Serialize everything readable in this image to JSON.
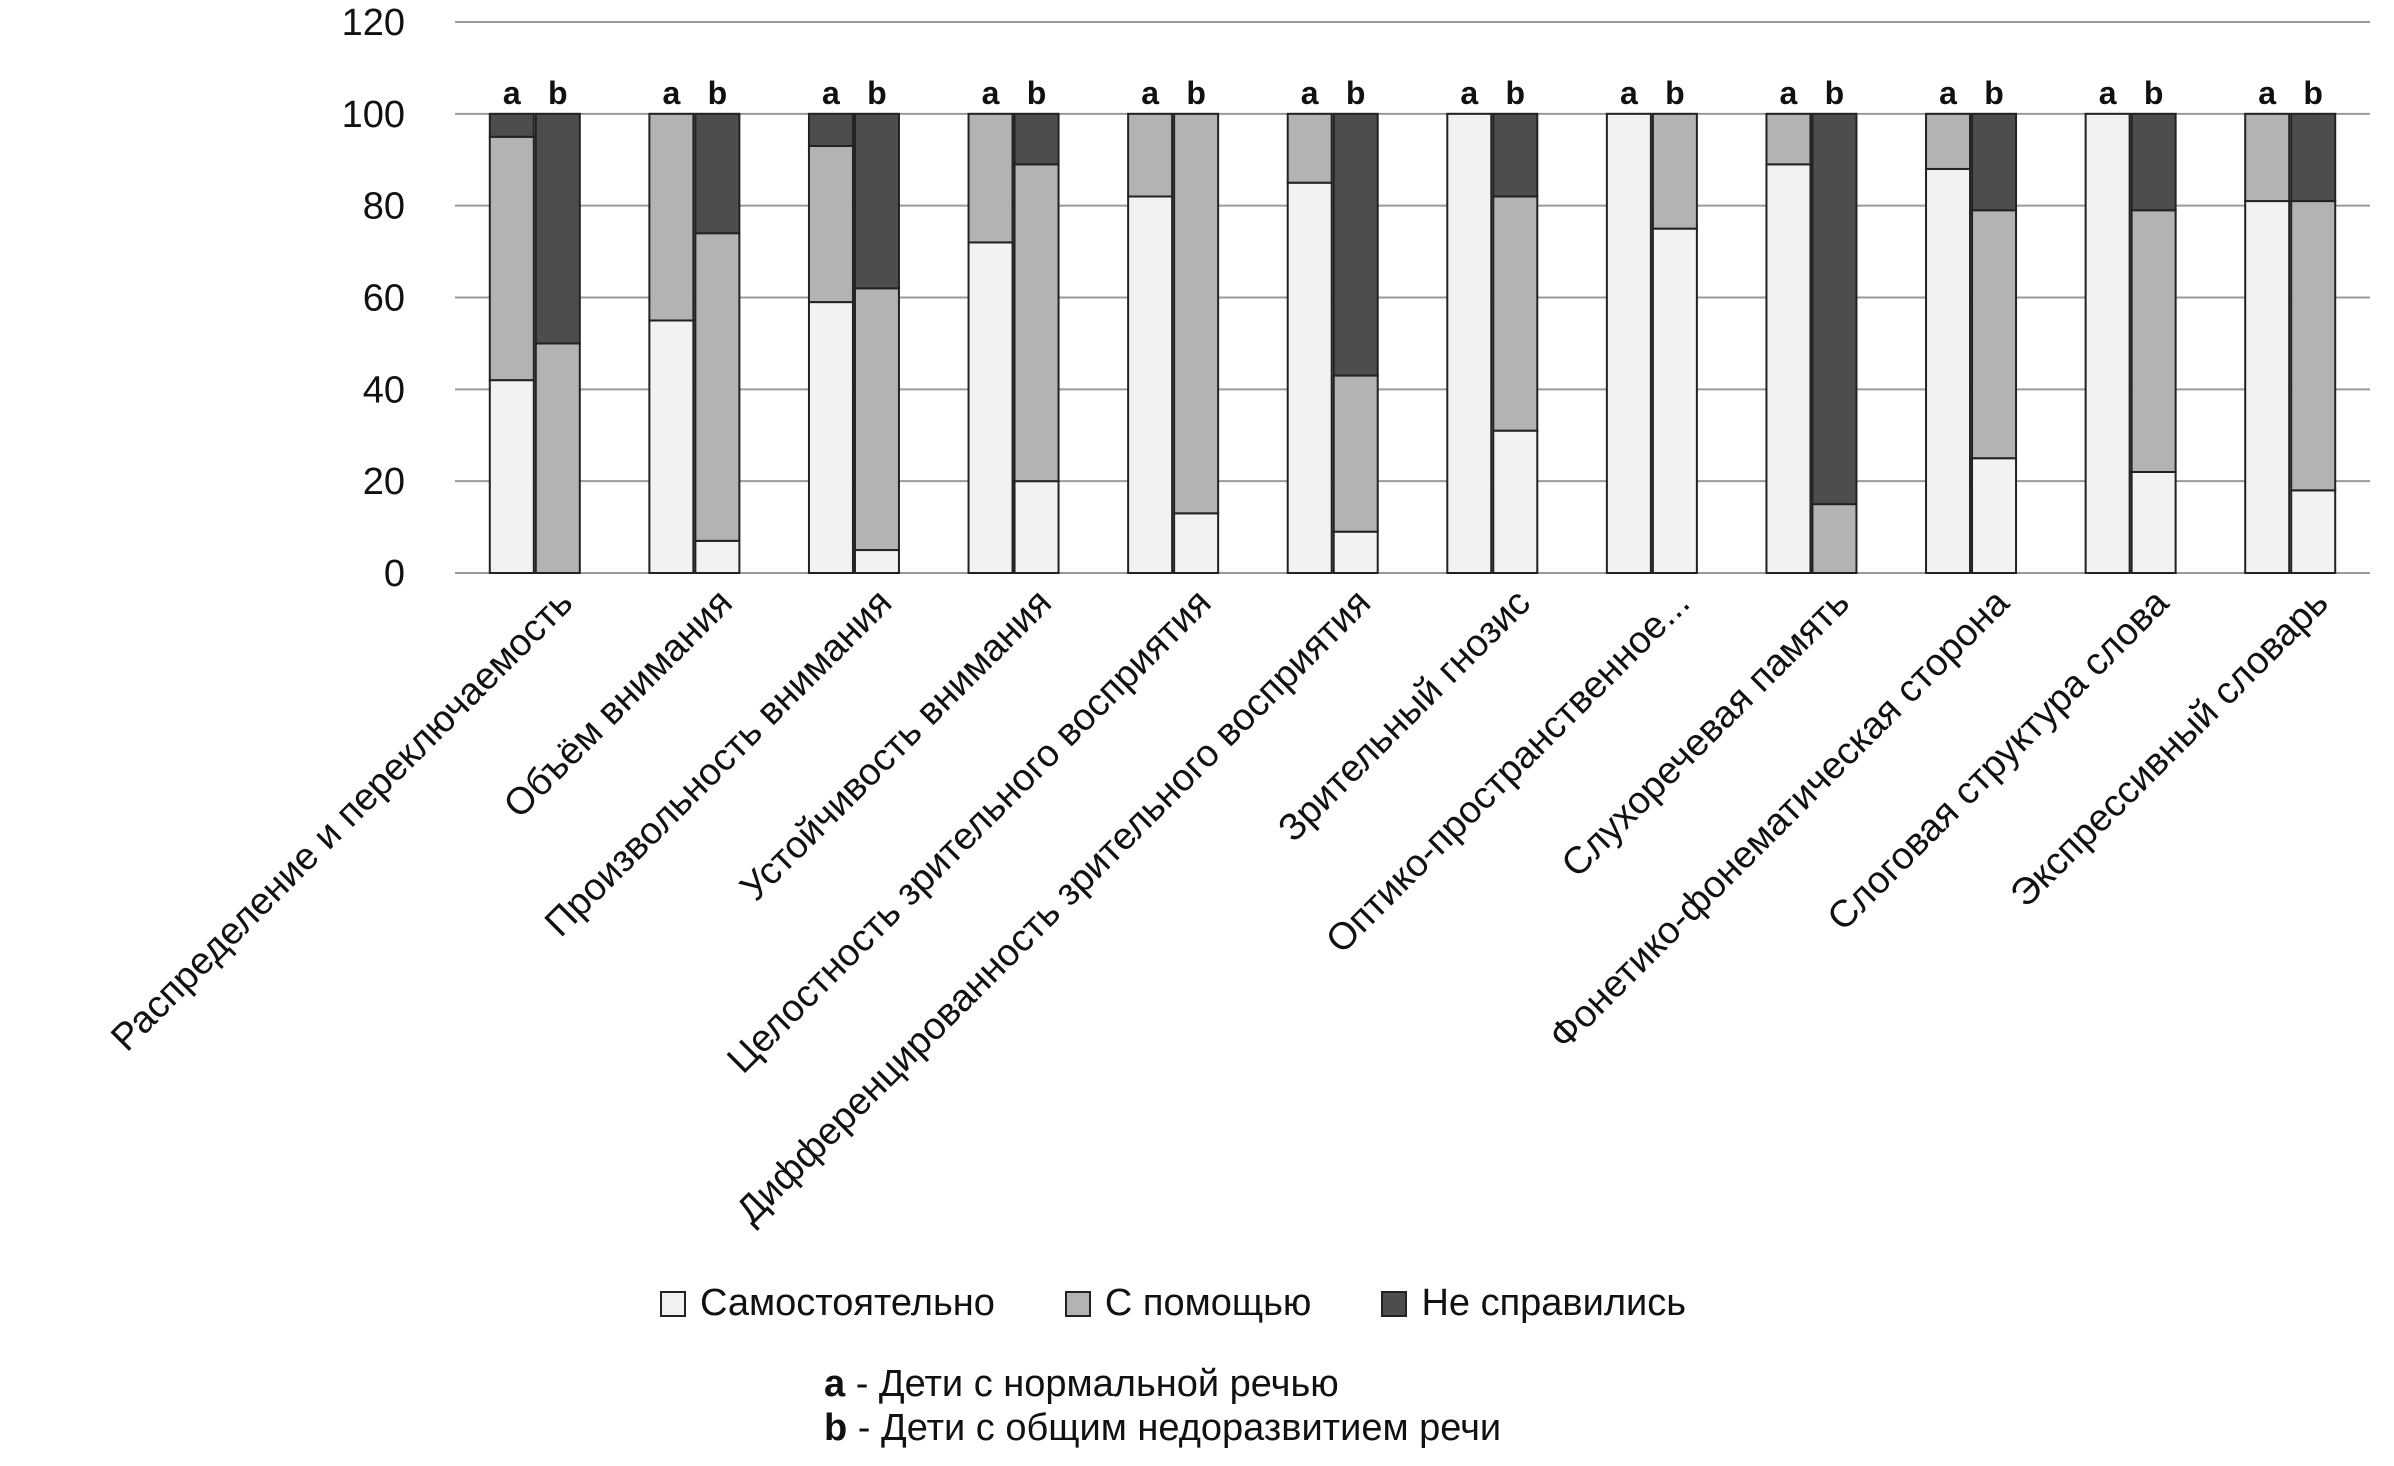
{
  "chart_data": {
    "type": "bar",
    "stacked": true,
    "ylim": [
      0,
      120
    ],
    "yticks": [
      0,
      20,
      40,
      60,
      80,
      100,
      120
    ],
    "grid": true,
    "categories": [
      "Распределение и переключаемость",
      "Объём внимания",
      "Произвольность внимания",
      "Устойчивость внимания",
      "Целостность зрительного восприятия",
      "Дифференцированность зрительного восприятия",
      "Зрительный гнозис",
      "Оптико-пространственное...",
      "Слухоречевая память",
      "Фонетико-фонематическая сторона",
      "Слоговая структура слова",
      "Экспрессивный словарь"
    ],
    "group_labels": [
      "a",
      "b"
    ],
    "series": [
      {
        "name": "Самостоятельно",
        "color": "#f2f2f2",
        "a": [
          42,
          55,
          59,
          72,
          82,
          85,
          100,
          100,
          89,
          88,
          100,
          81
        ],
        "b": [
          0,
          7,
          5,
          20,
          13,
          9,
          31,
          75,
          0,
          25,
          22,
          18
        ]
      },
      {
        "name": "С помощью",
        "color": "#b3b3b3",
        "a": [
          53,
          45,
          34,
          28,
          18,
          15,
          0,
          0,
          11,
          12,
          0,
          19
        ],
        "b": [
          50,
          67,
          57,
          69,
          87,
          34,
          51,
          25,
          15,
          54,
          57,
          63
        ]
      },
      {
        "name": "Не справились",
        "color": "#4d4d4d",
        "a": [
          5,
          0,
          7,
          0,
          0,
          0,
          0,
          0,
          0,
          0,
          0,
          0
        ],
        "b": [
          50,
          26,
          38,
          11,
          0,
          57,
          18,
          0,
          85,
          21,
          21,
          19
        ]
      }
    ]
  },
  "legend": {
    "items": [
      {
        "label": "Самостоятельно",
        "color": "#f2f2f2"
      },
      {
        "label": "С помощью",
        "color": "#b3b3b3"
      },
      {
        "label": "Не справились",
        "color": "#4d4d4d"
      }
    ]
  },
  "notes": {
    "a_key": "a",
    "a_text": " - Дети с нормальной речью",
    "b_key": "b",
    "b_text": " - Дети с общим недоразвитием речи"
  }
}
